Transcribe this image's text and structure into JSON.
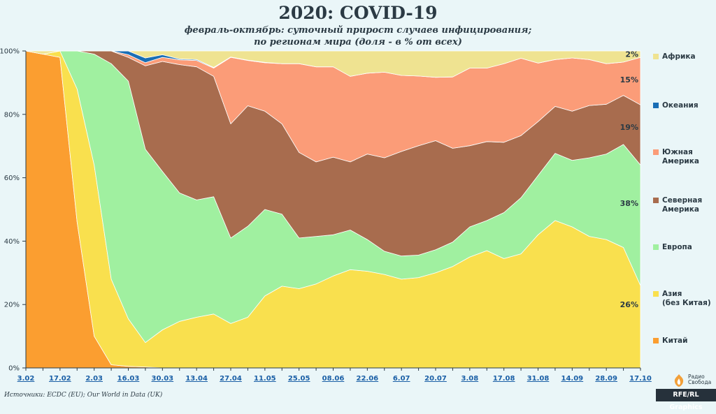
{
  "header": {
    "title": "2020: COVID-19",
    "subtitle_line1": "февраль-октябрь: суточный прирост случаев инфицирования;",
    "subtitle_line2": "по регионам мира (доля - в % от всех)"
  },
  "footer": {
    "source": "Источники: ECDC (EU); Our World in Data (UK)",
    "credit": "RFE/RL Graphics",
    "logo_text_1": "Радио",
    "logo_text_2": "Свобода"
  },
  "colors": {
    "background": "#eaf6f8",
    "Китай": "#fb9e30",
    "Азия (без Китая)": "#f9e04e",
    "Европа": "#a0f0a0",
    "Северная Америка": "#a86c4e",
    "Южная Америка": "#fb9c78",
    "Океания": "#1a6eb5",
    "Африка": "#efe391"
  },
  "chart_data": {
    "type": "area",
    "stacked": true,
    "y_unit": "%",
    "ylim": [
      0,
      100
    ],
    "y_ticks": [
      "0%",
      "20%",
      "40%",
      "60%",
      "80%",
      "100%"
    ],
    "x_tick_labels": [
      "3.02",
      "17.02",
      "2.03",
      "16.03",
      "30.03",
      "13.04",
      "27.04",
      "11.05",
      "25.05",
      "08.06",
      "22.06",
      "6.07",
      "20.07",
      "3.08",
      "17.08",
      "31.08",
      "14.09",
      "28.09",
      "17.10"
    ],
    "x": [
      "3.02",
      "10.02",
      "17.02",
      "24.02",
      "2.03",
      "9.03",
      "16.03",
      "23.03",
      "30.03",
      "6.04",
      "13.04",
      "20.04",
      "27.04",
      "4.05",
      "11.05",
      "18.05",
      "25.05",
      "1.06",
      "08.06",
      "15.06",
      "22.06",
      "29.06",
      "6.07",
      "13.07",
      "20.07",
      "27.07",
      "3.08",
      "10.08",
      "17.08",
      "24.08",
      "31.08",
      "7.09",
      "14.09",
      "21.09",
      "28.09",
      "5.10",
      "17.10"
    ],
    "legend_position": "right",
    "series": [
      {
        "name": "Китай",
        "values": [
          100,
          99,
          98,
          46,
          10,
          1,
          0.5,
          0.3,
          0,
          0,
          0,
          0,
          0,
          0,
          0,
          0,
          0,
          0,
          0,
          0,
          0,
          0,
          0,
          0,
          0,
          0,
          0,
          0,
          0,
          0,
          0,
          0,
          0,
          0,
          0,
          0,
          0
        ]
      },
      {
        "name": "Азия (без Китая)",
        "values": [
          0,
          0,
          2,
          42,
          54,
          27,
          15,
          7.7,
          12,
          14.7,
          16,
          17,
          14,
          16,
          22.7,
          25.8,
          25,
          26.5,
          29,
          31,
          30.5,
          29.5,
          28,
          28.5,
          30,
          32,
          35,
          37,
          34.5,
          36,
          42,
          46.5,
          44.5,
          41.5,
          40.5,
          38,
          26
        ]
      },
      {
        "name": "Европа",
        "values": [
          0,
          0,
          0,
          12,
          35,
          68,
          75,
          61,
          50,
          40.5,
          37,
          37,
          27,
          28.7,
          27.3,
          22.7,
          16,
          15,
          13,
          12.5,
          10,
          7.3,
          7.3,
          7.1,
          7.3,
          7.7,
          9.5,
          9.5,
          14.5,
          17.7,
          18.7,
          21.2,
          21,
          24.8,
          27,
          32.5,
          38
        ]
      },
      {
        "name": "Северная Америка",
        "values": [
          0,
          0,
          0,
          0,
          1,
          4,
          7.5,
          26.3,
          34.7,
          40.5,
          42,
          38,
          36,
          38,
          31,
          28.5,
          27,
          23.5,
          24.5,
          21.5,
          27,
          29.5,
          33,
          34.5,
          34.4,
          29.6,
          25.6,
          24.9,
          22.2,
          19.6,
          17,
          14.8,
          15.5,
          16.5,
          15.7,
          15.5,
          19
        ]
      },
      {
        "name": "Южная Америка",
        "values": [
          0,
          0,
          0,
          0,
          0,
          0.3,
          0.8,
          1,
          1.3,
          1.5,
          2,
          2.6,
          21,
          14.3,
          15.3,
          19,
          28,
          30,
          28.5,
          27,
          25.5,
          27,
          24,
          22,
          20,
          22.5,
          24.5,
          23.2,
          24.8,
          24.4,
          18.5,
          14.8,
          16.8,
          14.5,
          12.8,
          10.5,
          15
        ]
      },
      {
        "name": "Океания",
        "values": [
          0,
          0,
          0,
          0,
          0,
          0.3,
          1.2,
          1.5,
          0.8,
          0.3,
          0.3,
          0.2,
          0.1,
          0.1,
          0.1,
          0,
          0,
          0,
          0,
          0,
          0,
          0,
          0,
          0,
          0,
          0,
          0,
          0,
          0,
          0,
          0,
          0,
          0,
          0,
          0,
          0,
          0
        ]
      },
      {
        "name": "Африка",
        "values": [
          0,
          1,
          0,
          0,
          0,
          1.1,
          0.5,
          2.5,
          1.2,
          2.5,
          2.7,
          5.2,
          1.9,
          2.9,
          3.6,
          4,
          4,
          5,
          5,
          8,
          7,
          6.7,
          7.7,
          7.9,
          8.3,
          8.2,
          5.4,
          5.4,
          4,
          2.3,
          3.8,
          2.7,
          2.2,
          2.7,
          4,
          3.5,
          2
        ]
      }
    ],
    "annotations": [
      {
        "text": "2%",
        "x": "17.10",
        "y": 99
      },
      {
        "text": "15%",
        "x": "17.10",
        "y": 91
      },
      {
        "text": "19%",
        "x": "17.10",
        "y": 76
      },
      {
        "text": "38%",
        "x": "17.10",
        "y": 52
      },
      {
        "text": "26%",
        "x": "17.10",
        "y": 20
      }
    ],
    "legend": [
      "Африка",
      "Океания",
      "Южная Америка",
      "Северная Америка",
      "Европа",
      "Азия (без Китая)",
      "Китай"
    ]
  }
}
